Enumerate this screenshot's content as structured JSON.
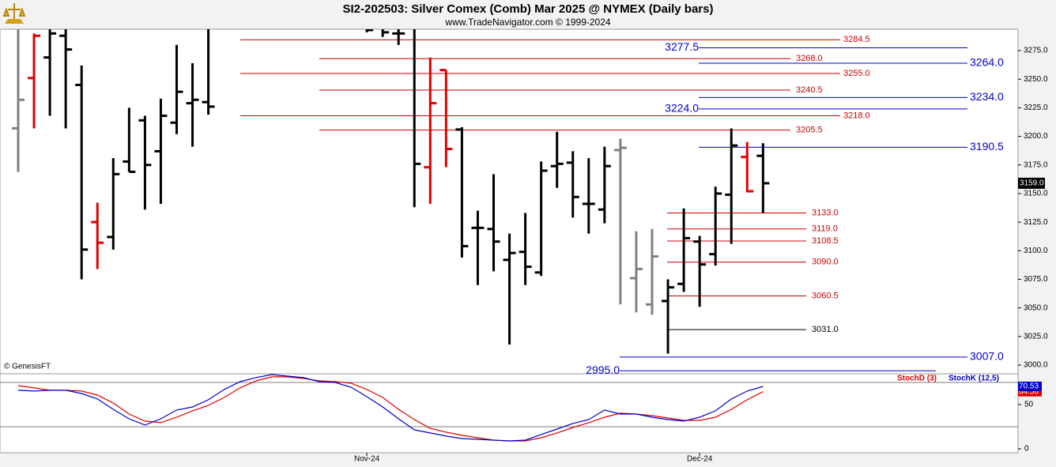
{
  "chart_data": [
    {
      "type": "ohlc",
      "title": "SI2-202503:  Silver Comex (Comb) Mar 2025 @ NYMEX  (Daily bars)",
      "subtitle": "www.TradeNavigator.com © 1999-2024",
      "credit": "© GenesisFT",
      "categories": [
        null,
        null,
        null,
        null,
        null,
        null,
        null,
        null,
        null,
        null,
        null,
        null,
        null,
        null,
        null,
        null,
        null,
        null,
        null,
        null,
        null,
        null,
        "Nov-24",
        null,
        null,
        null,
        null,
        null,
        null,
        null,
        null,
        null,
        null,
        null,
        null,
        null,
        null,
        null,
        null,
        null,
        null,
        null,
        null,
        "Dec-24",
        null,
        null,
        null,
        null
      ],
      "open": [
        3207,
        3251,
        3269,
        3288,
        3245,
        3125,
        3112,
        3178,
        3214,
        3187,
        3212,
        3229,
        3230,
        null,
        null,
        null,
        null,
        null,
        null,
        null,
        null,
        null,
        null,
        null,
        3290,
        3296,
        3173,
        3258,
        3206,
        3120,
        3119,
        3092,
        3099,
        3081,
        3174,
        3177,
        3141,
        3136,
        3188,
        3076,
        3053,
        3056,
        3071,
        3108,
        3097,
        3149,
        3182,
        3183
      ],
      "high": [
        3295,
        3290,
        3300,
        3298,
        3262,
        3142,
        3181,
        3225,
        3218,
        3233,
        3280,
        3264,
        3310,
        null,
        null,
        null,
        null,
        null,
        null,
        null,
        null,
        null,
        3300,
        3300,
        3300,
        3310,
        3269,
        3258,
        3208,
        3135,
        3167,
        3115,
        3133,
        3178,
        3204,
        3187,
        3181,
        3191,
        3198,
        3117,
        3119,
        3075,
        3137,
        3113,
        3156,
        3207,
        3195,
        3194
      ],
      "low": [
        3169,
        3207,
        3218,
        3207,
        3075,
        3084,
        3101,
        3169,
        3136,
        3141,
        3202,
        3191,
        3219,
        null,
        null,
        null,
        null,
        null,
        null,
        null,
        null,
        null,
        3291,
        3287,
        3280,
        3138,
        3141,
        3173,
        3094,
        3070,
        3082,
        3018,
        3070,
        3078,
        3155,
        3129,
        3115,
        3124,
        3053,
        3046,
        3044,
        3010,
        3064,
        3051,
        3087,
        3106,
        3151,
        3133
      ],
      "close": [
        3232,
        3288,
        3290,
        3276,
        3101,
        3107,
        3167,
        3169,
        3175,
        3218,
        3239,
        3232,
        3226,
        null,
        null,
        null,
        null,
        null,
        null,
        null,
        null,
        null,
        3293,
        3291,
        3290,
        3176,
        3229,
        3189,
        3104,
        3120,
        3108,
        3098,
        3086,
        3170,
        3176,
        3147,
        3141,
        3174,
        3190,
        3084,
        3095,
        3068,
        3111,
        3088,
        3150,
        3192,
        3152,
        3159
      ],
      "colors": [
        "#808080",
        "#e00000",
        "#000000",
        "#000000",
        "#000000",
        "#e00000",
        "#000000",
        "#000000",
        "#000000",
        "#000000",
        "#000000",
        "#000000",
        "#000000",
        "#000000",
        "#000000",
        "#000000",
        "#000000",
        "#000000",
        "#000000",
        "#000000",
        "#000000",
        "#000000",
        "#000000",
        "#000000",
        "#000000",
        "#000000",
        "#e00000",
        "#e00000",
        "#000000",
        "#000000",
        "#000000",
        "#000000",
        "#000000",
        "#000000",
        "#000000",
        "#000000",
        "#000000",
        "#000000",
        "#808080",
        "#808080",
        "#808080",
        "#000000",
        "#000000",
        "#000000",
        "#000000",
        "#000000",
        "#e00000",
        "#000000"
      ],
      "last_close_label": "3159.0",
      "ylim": [
        2992.4,
        3293.7
      ],
      "yticks": [
        {
          "value": 3000,
          "label": "3000.0"
        },
        {
          "value": 3025,
          "label": "3025.0"
        },
        {
          "value": 3050,
          "label": "3050.0"
        },
        {
          "value": 3075,
          "label": "3075.0"
        },
        {
          "value": 3100,
          "label": "3100.0"
        },
        {
          "value": 3125,
          "label": "3125.0"
        },
        {
          "value": 3150,
          "label": "3150.0"
        },
        {
          "value": 3175,
          "label": "3175.0"
        },
        {
          "value": 3200,
          "label": "3200.0"
        },
        {
          "value": 3225,
          "label": "3225.0"
        },
        {
          "value": 3250,
          "label": "3250.0"
        },
        {
          "value": 3275,
          "label": "3275.0"
        }
      ],
      "levels": [
        {
          "value": 3284.5,
          "label": "3284.5",
          "color": "#cc0000"
        },
        {
          "value": 3268,
          "label": "3268.0",
          "color": "#cc0000"
        },
        {
          "value": 3255,
          "label": "3255.0",
          "color": "#cc0000"
        },
        {
          "value": 3240.5,
          "label": "3240.5",
          "color": "#cc0000"
        },
        {
          "value": 3218,
          "label": "3218.0",
          "color": "#cc0000"
        },
        {
          "value": 3205.5,
          "label": "3205.5",
          "color": "#cc0000"
        },
        {
          "value": 3133,
          "label": "3133.0",
          "color": "#cc0000"
        },
        {
          "value": 3119,
          "label": "3119.0",
          "color": "#cc0000"
        },
        {
          "value": 3108.5,
          "label": "3108.5",
          "color": "#cc0000"
        },
        {
          "value": 3090,
          "label": "3090.0",
          "color": "#cc0000"
        },
        {
          "value": 3060.5,
          "label": "3060.5",
          "color": "#cc0000"
        },
        {
          "value": 3031,
          "label": "3031.0",
          "color": "#000000"
        },
        {
          "value": 3277.5,
          "label": "3277.5",
          "color": "#0000cc"
        },
        {
          "value": 3264,
          "label": "3264.0",
          "color": "#0000cc"
        },
        {
          "value": 3234,
          "label": "3234.0",
          "color": "#0000cc"
        },
        {
          "value": 3224,
          "label": "3224.0",
          "color": "#0000cc"
        },
        {
          "value": 3190.5,
          "label": "3190.5",
          "color": "#0000cc"
        },
        {
          "value": 3007,
          "label": "3007.0",
          "color": "#0000cc"
        },
        {
          "value": 2995,
          "label": "2995.0",
          "color": "#0000cc"
        }
      ]
    },
    {
      "type": "line",
      "legend": "top-right",
      "series": [
        {
          "name": "StochD (3)",
          "color": "#e00000",
          "values": [
            71.4,
            68.8,
            66.1,
            66.1,
            65.2,
            60.7,
            51.8,
            39.3,
            31.3,
            29.5,
            35.7,
            42.9,
            49.1,
            58,
            68.8,
            76.8,
            81.3,
            81.3,
            79.5,
            76.8,
            75.9,
            74.1,
            67,
            58,
            44.6,
            33,
            23.2,
            18.8,
            15.2,
            12.5,
            9.8,
            8.9,
            8.9,
            12.5,
            17.9,
            24.1,
            29.5,
            35.7,
            40.2,
            39.3,
            37.5,
            34.8,
            32.1,
            32.1,
            35.7,
            44.6,
            55.4,
            64.56
          ]
        },
        {
          "name": "StochK (12,5)",
          "color": "#0000cc",
          "values": [
            66.1,
            65.2,
            66.1,
            66.1,
            62.5,
            56.3,
            44.6,
            33.9,
            26.8,
            33.9,
            43.8,
            47.3,
            55.4,
            67,
            75.9,
            80.4,
            83.9,
            82.1,
            80.4,
            75.9,
            75,
            69.6,
            58.9,
            47.3,
            33.9,
            21.4,
            17.9,
            14.3,
            11.6,
            10.7,
            9.8,
            8.9,
            9.8,
            16.1,
            22.3,
            28.6,
            33,
            43.8,
            39.3,
            39.3,
            35.7,
            33,
            31.3,
            35.7,
            42.9,
            56.3,
            65.2,
            70.53
          ]
        }
      ],
      "ylim": [
        -4.5,
        84.8
      ],
      "yticks": [
        0,
        50
      ],
      "hlines": [
        25,
        75
      ]
    }
  ]
}
